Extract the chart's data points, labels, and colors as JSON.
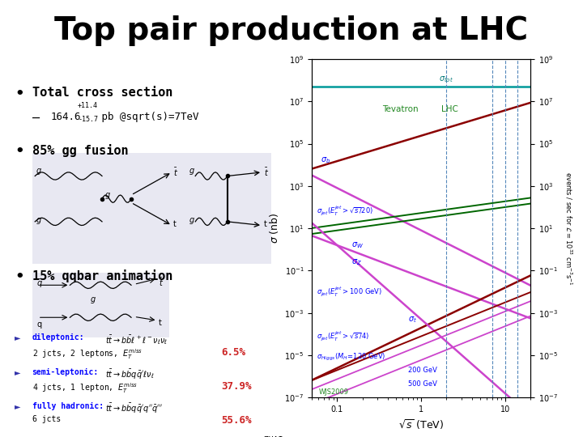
{
  "title": "Top pair production at LHC",
  "title_fontsize": 28,
  "background_color": "#ffffff",
  "bullet1": "Total cross section",
  "bullet1_val": "164.6",
  "bullet1_plus": "+11.4",
  "bullet1_minus": "-15.7",
  "bullet1_unit": " pb @sqrt(s)=7TeV",
  "bullet2": "85% gg fusion",
  "bullet3": "15% qqbar animation",
  "decay1_label": "dileptonic:",
  "decay1_pct": "6.5%",
  "decay2_label": "semi-leptonic:",
  "decay2_pct": "37.9%",
  "decay3_label": "fully hadronic:",
  "decay3_pct": "55.6%",
  "xlabel": "$\\sqrt{s}$ (TeV)",
  "ylabel_left": "$\\sigma$ (nb)",
  "ylabel_right": "events / sec for $\\mathcal{L} = 10^{33}$ cm$^{-3}$s$^{-1}$",
  "tevatron_label": "Tevatron",
  "lhc_label": "LHC",
  "watermark": "WJS2009",
  "vlines": [
    1.96,
    7.0,
    10.0,
    14.0
  ]
}
